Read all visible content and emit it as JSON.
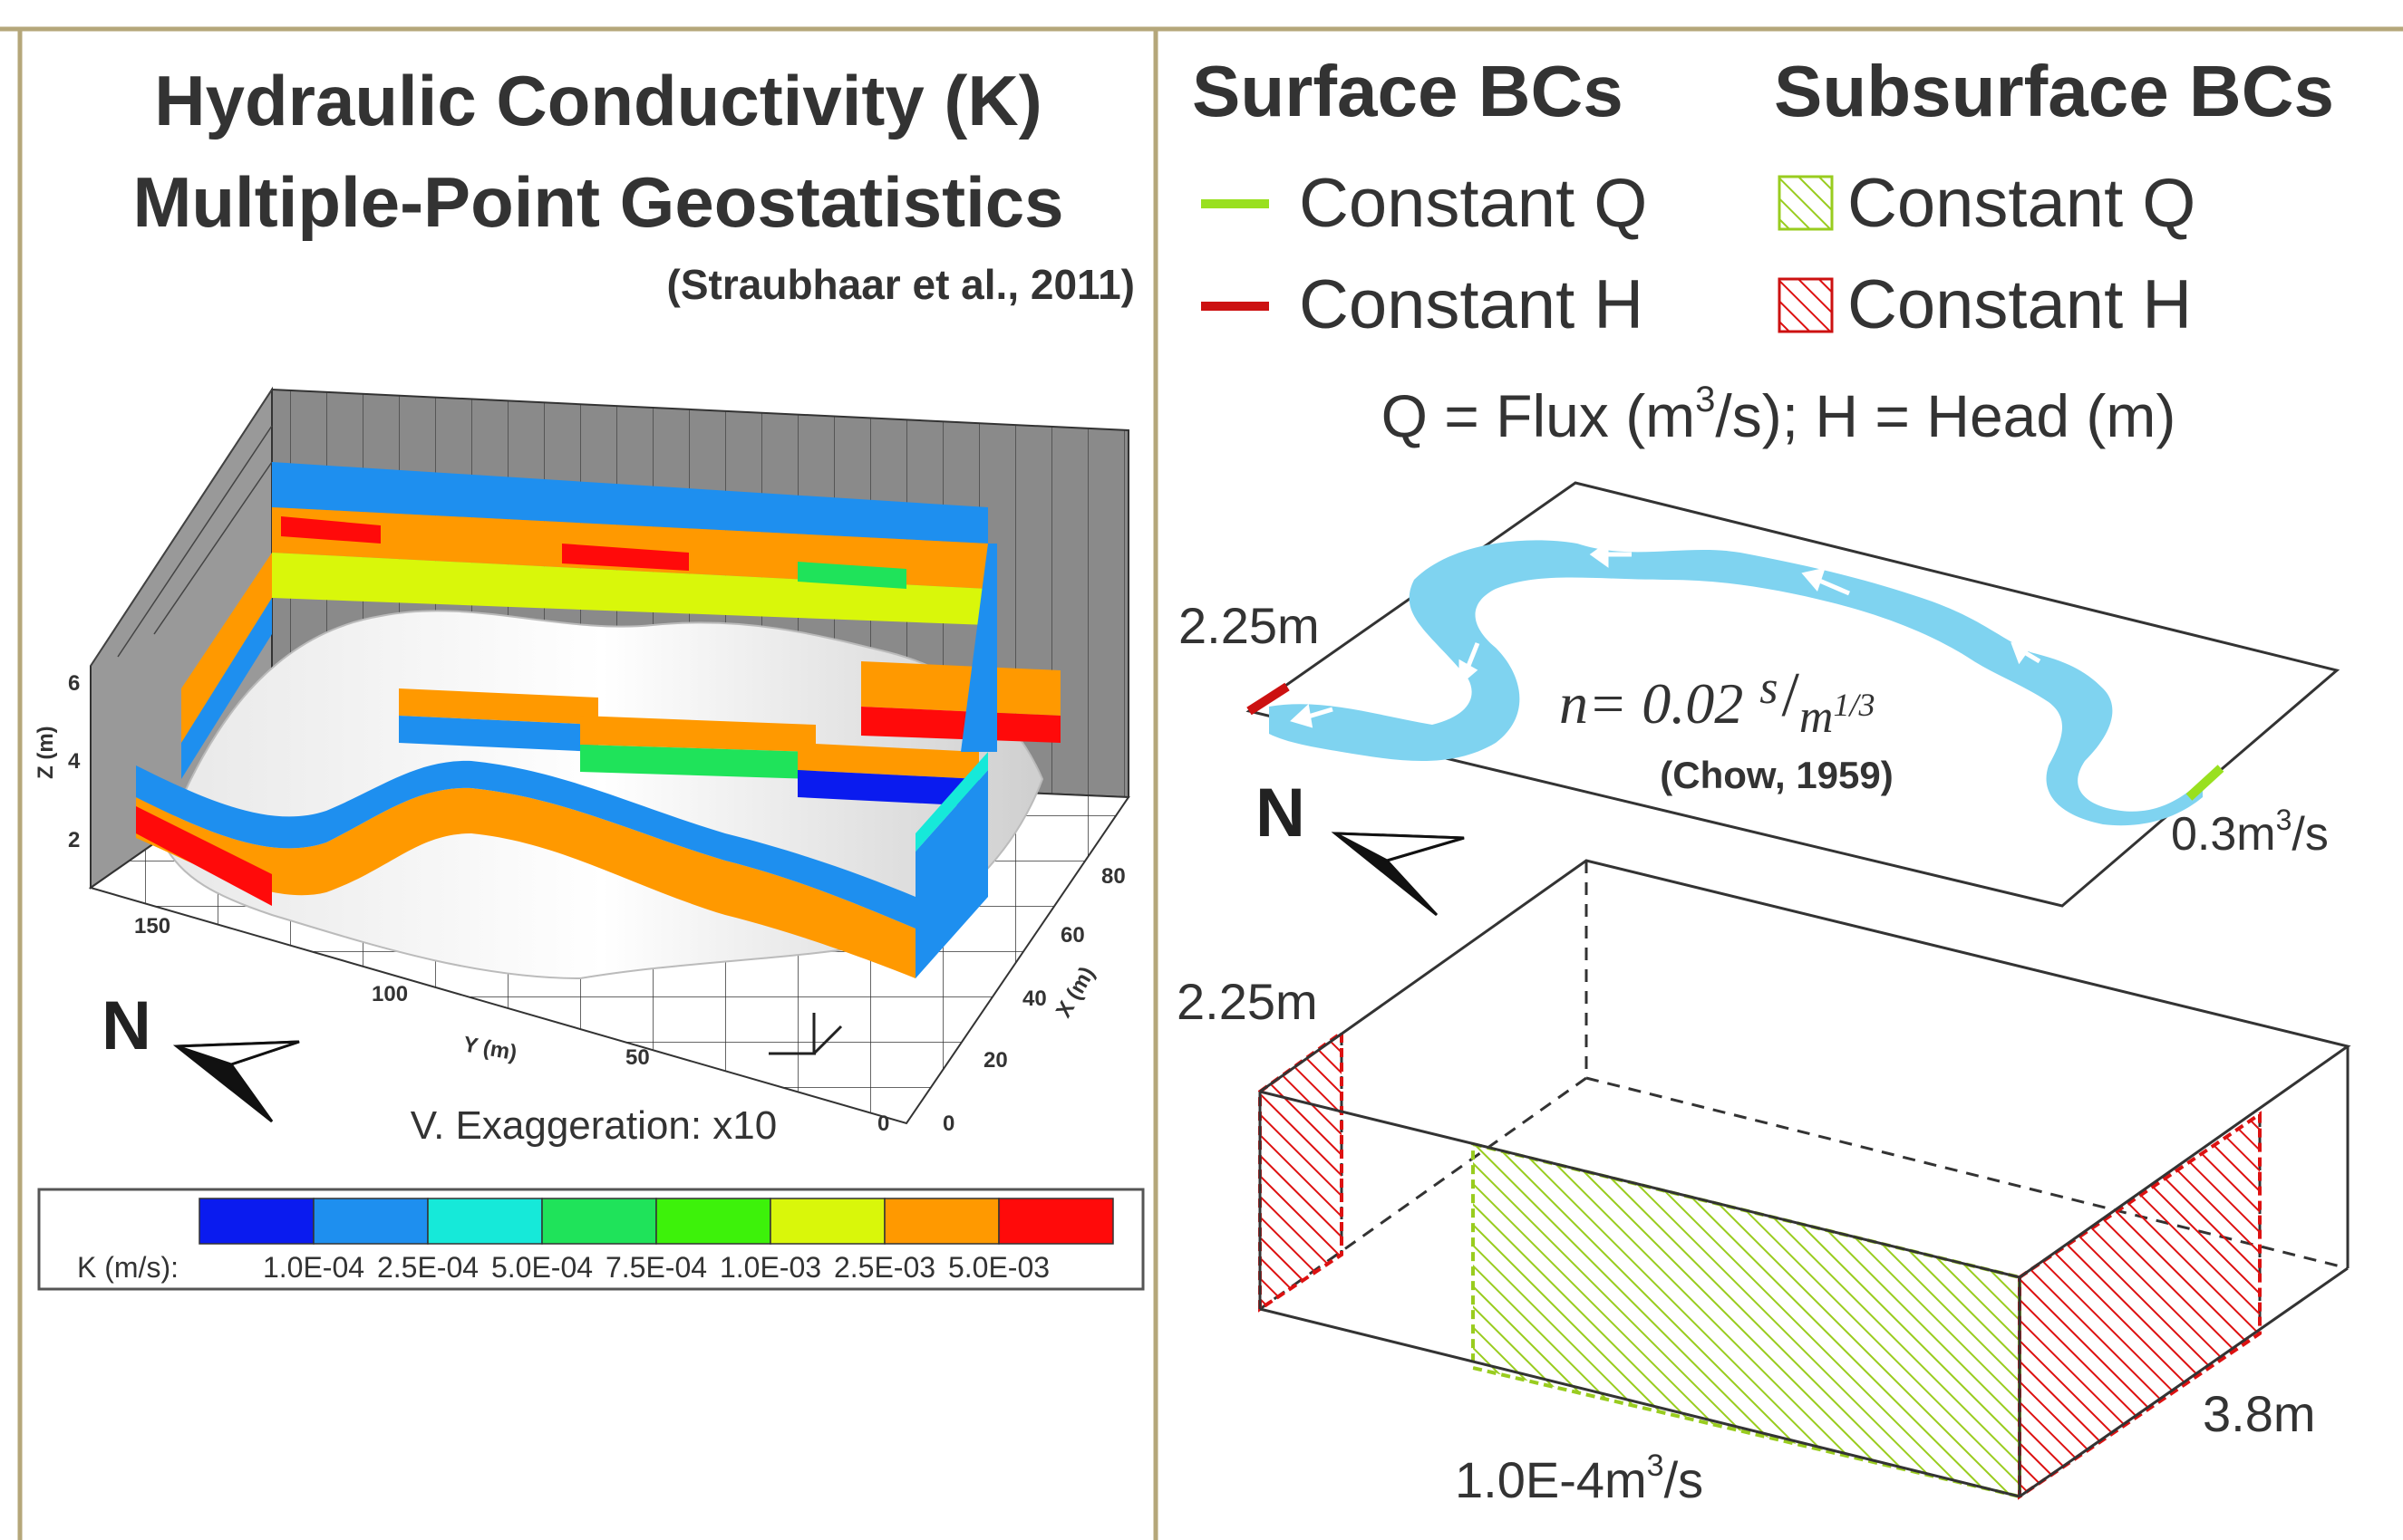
{
  "left_panel": {
    "title_line1": "Hydraulic Conductivity (K)",
    "title_line2": "Multiple-Point Geostatistics",
    "citation": "(Straubhaar et al., 2011)",
    "north_label": "N",
    "exaggeration": "V. Exaggeration: x10",
    "axes": {
      "z_label": "Z (m)",
      "z_ticks": [
        "6",
        "4",
        "2"
      ],
      "y_label": "Y (m)",
      "y_ticks": [
        "150",
        "100",
        "50",
        "0"
      ],
      "x_label": "X (m)",
      "x_ticks": [
        "80",
        "60",
        "40",
        "20",
        "0"
      ]
    },
    "colorbar": {
      "label": "K (m/s):",
      "tick_labels": [
        "1.0E-04",
        "2.5E-04",
        "5.0E-04",
        "7.5E-04",
        "1.0E-03",
        "2.5E-03",
        "5.0E-03"
      ],
      "colors": [
        "#0a1bef",
        "#1e8fef",
        "#16e9d9",
        "#1fe35a",
        "#3df20a",
        "#d9f70a",
        "#ff9900",
        "#ff0a0a"
      ]
    }
  },
  "right_panel": {
    "surface_bcs_title": "Surface BCs",
    "subsurface_bcs_title": "Subsurface BCs",
    "surface_legend": [
      {
        "label": "Constant Q",
        "color": "#99e01f"
      },
      {
        "label": "Constant H",
        "color": "#cc1111"
      }
    ],
    "subsurface_legend": [
      {
        "label": "Constant Q",
        "color": "#99cc1f"
      },
      {
        "label": "Constant H",
        "color": "#cc1111"
      }
    ],
    "definition": {
      "prefix": "Q = Flux (m",
      "sup": "3",
      "suffix": "/s); H = Head (m)"
    },
    "surface_plane": {
      "head_label": "2.25m",
      "manning": {
        "lhs": "n= 0.02",
        "num": "s",
        "den": "m",
        "den_sup": "1/3"
      },
      "manning_citation": "(Chow, 1959)",
      "flux": {
        "prefix": "0.3m",
        "sup": "3",
        "suffix": "/s"
      },
      "north_label": "N"
    },
    "subsurface_box": {
      "head_left": "2.25m",
      "head_right": "3.8m",
      "flux": {
        "prefix": "1.0E-4m",
        "sup": "3",
        "suffix": "/s"
      }
    }
  },
  "colors": {
    "frame": "#b5a77a",
    "river": "#7fd3f0",
    "hatch_red": "#dd1111",
    "hatch_green": "#99cc1f"
  }
}
